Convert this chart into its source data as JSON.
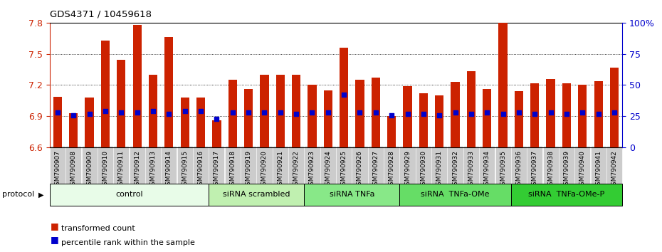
{
  "title": "GDS4371 / 10459618",
  "samples": [
    "GSM790907",
    "GSM790908",
    "GSM790909",
    "GSM790910",
    "GSM790911",
    "GSM790912",
    "GSM790913",
    "GSM790914",
    "GSM790915",
    "GSM790916",
    "GSM790917",
    "GSM790918",
    "GSM790919",
    "GSM790920",
    "GSM790921",
    "GSM790922",
    "GSM790923",
    "GSM790924",
    "GSM790925",
    "GSM790926",
    "GSM790927",
    "GSM790928",
    "GSM790929",
    "GSM790930",
    "GSM790931",
    "GSM790932",
    "GSM790933",
    "GSM790934",
    "GSM790935",
    "GSM790936",
    "GSM790937",
    "GSM790938",
    "GSM790939",
    "GSM790940",
    "GSM790941",
    "GSM790942"
  ],
  "red_values": [
    7.09,
    6.93,
    7.08,
    7.63,
    7.44,
    7.78,
    7.3,
    7.66,
    7.08,
    7.08,
    6.86,
    7.25,
    7.16,
    7.3,
    7.3,
    7.3,
    7.2,
    7.15,
    7.56,
    7.25,
    7.27,
    6.9,
    7.19,
    7.12,
    7.1,
    7.23,
    7.33,
    7.16,
    7.8,
    7.14,
    7.22,
    7.26,
    7.22,
    7.2,
    7.24,
    7.37
  ],
  "blue_pct": [
    28,
    26,
    27,
    29,
    28,
    28,
    29,
    27,
    29,
    29,
    23,
    28,
    28,
    28,
    28,
    27,
    28,
    28,
    42,
    28,
    28,
    26,
    27,
    27,
    26,
    28,
    27,
    28,
    27,
    28,
    27,
    28,
    27,
    28,
    27,
    28
  ],
  "groups": [
    {
      "label": "control",
      "start": 0,
      "end": 10,
      "color": "#e8fce8"
    },
    {
      "label": "siRNA scrambled",
      "start": 10,
      "end": 16,
      "color": "#c0f0b0"
    },
    {
      "label": "siRNA TNFa",
      "start": 16,
      "end": 22,
      "color": "#88e888"
    },
    {
      "label": "siRNA  TNFa-OMe",
      "start": 22,
      "end": 29,
      "color": "#66dd66"
    },
    {
      "label": "siRNA  TNFa-OMe-P",
      "start": 29,
      "end": 36,
      "color": "#33cc33"
    }
  ],
  "ylim_left": [
    6.6,
    7.8
  ],
  "ylim_right": [
    0,
    100
  ],
  "yticks_left": [
    6.6,
    6.9,
    7.2,
    7.5,
    7.8
  ],
  "yticks_right": [
    0,
    25,
    50,
    75,
    100
  ],
  "ytick_labels_right": [
    "0",
    "25",
    "50",
    "75",
    "100%"
  ],
  "bar_color": "#cc2200",
  "dot_color": "#0000cc",
  "bar_width": 0.55,
  "xtick_bg": "#cccccc",
  "plot_bg": "#ffffff",
  "left_axis_color": "#cc2200",
  "right_axis_color": "#0000cc"
}
